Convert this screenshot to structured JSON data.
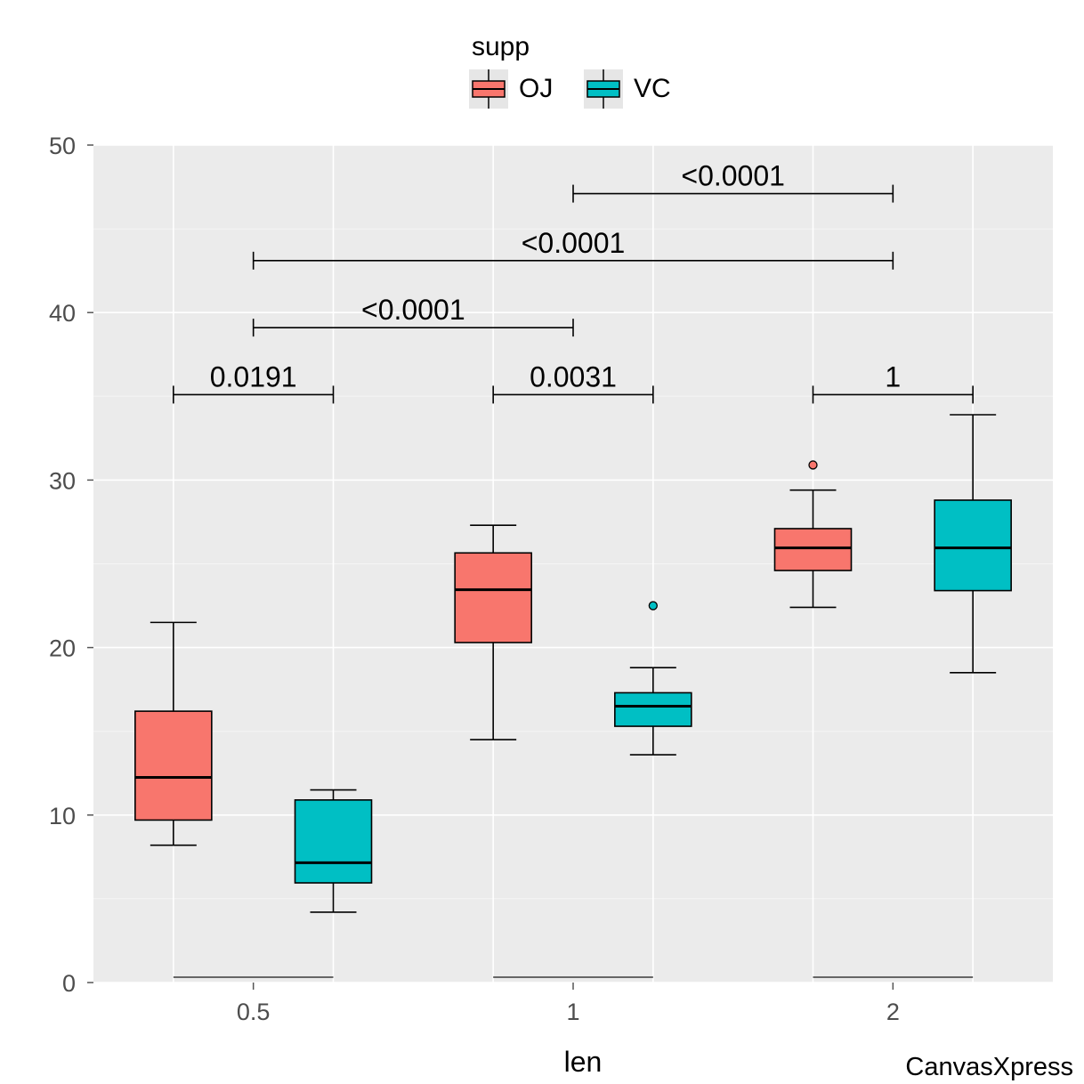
{
  "chart_data": {
    "type": "boxplot",
    "xlabel": "len",
    "ylabel": "",
    "ylim": [
      0,
      50
    ],
    "yticks": [
      0,
      10,
      20,
      30,
      40,
      50
    ],
    "categories": [
      "0.5",
      "1",
      "2"
    ],
    "legend": {
      "title": "supp",
      "position": "top",
      "entries": [
        {
          "name": "OJ",
          "color": "#F8766D"
        },
        {
          "name": "VC",
          "color": "#00BFC4"
        }
      ]
    },
    "series": [
      {
        "name": "OJ",
        "color": "#F8766D",
        "boxes": [
          {
            "category": "0.5",
            "min": 8.2,
            "q1": 9.7,
            "median": 12.25,
            "q3": 16.2,
            "max": 21.5,
            "outliers": []
          },
          {
            "category": "1",
            "min": 14.5,
            "q1": 20.3,
            "median": 23.45,
            "q3": 25.65,
            "max": 27.3,
            "outliers": []
          },
          {
            "category": "2",
            "min": 22.4,
            "q1": 24.6,
            "median": 25.95,
            "q3": 27.1,
            "max": 29.4,
            "outliers": [
              30.9
            ]
          }
        ]
      },
      {
        "name": "VC",
        "color": "#00BFC4",
        "boxes": [
          {
            "category": "0.5",
            "min": 4.2,
            "q1": 5.95,
            "median": 7.15,
            "q3": 10.9,
            "max": 11.5,
            "outliers": []
          },
          {
            "category": "1",
            "min": 13.6,
            "q1": 15.3,
            "median": 16.5,
            "q3": 17.3,
            "max": 18.8,
            "outliers": [
              22.5
            ]
          },
          {
            "category": "2",
            "min": 18.5,
            "q1": 23.4,
            "median": 25.95,
            "q3": 28.8,
            "max": 33.9,
            "outliers": []
          }
        ]
      }
    ],
    "comparisons": [
      {
        "label": "0.0191",
        "y": 35.1,
        "from": {
          "category": "0.5",
          "series": "OJ"
        },
        "to": {
          "category": "0.5",
          "series": "VC"
        }
      },
      {
        "label": "0.0031",
        "y": 35.1,
        "from": {
          "category": "1",
          "series": "OJ"
        },
        "to": {
          "category": "1",
          "series": "VC"
        }
      },
      {
        "label": "1",
        "y": 35.1,
        "from": {
          "category": "2",
          "series": "OJ"
        },
        "to": {
          "category": "2",
          "series": "VC"
        }
      },
      {
        "label": "<0.0001",
        "y": 39.1,
        "from": {
          "category": "0.5"
        },
        "to": {
          "category": "1"
        }
      },
      {
        "label": "<0.0001",
        "y": 43.1,
        "from": {
          "category": "0.5"
        },
        "to": {
          "category": "2"
        }
      },
      {
        "label": "<0.0001",
        "y": 47.1,
        "from": {
          "category": "1"
        },
        "to": {
          "category": "2"
        }
      }
    ],
    "watermark": "CanvasXpress"
  }
}
